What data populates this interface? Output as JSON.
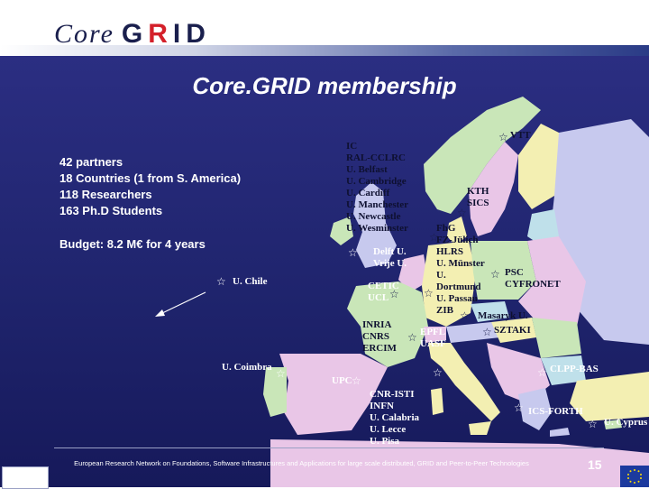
{
  "header": {
    "logo_core": "Core",
    "logo_grid_g": "G",
    "logo_grid_r": "R",
    "logo_grid_id": "ID"
  },
  "title": "Core.GRID membership",
  "stats": [
    "42 partners",
    "18 Countries (1 from S. America)",
    "118 Researchers",
    "163 Ph.D Students"
  ],
  "budget": "Budget: 8.2 M€ for 4 years",
  "labels": {
    "vtt": "VTT",
    "uk": "IC\nRAL-CCLRC\nU. Belfast\nU. Cambridge\nU. Cardiff\nU. Manchester\nU. Newcastle\nU. Wesminster",
    "kth": "KTH\nSICS",
    "fhg": "FhG\nFZ-Jülich\nHLRS\nU. Münster\nU.\nDortmund\nU. Passau\nZIB",
    "delft": "Delft U.\nVrije U.",
    "psc": "PSC\nCYFRONET",
    "chile": "U. Chile",
    "cetic": "CETIC\nUCL",
    "masaryk": "Masaryk U.",
    "sztaki": "SZTAKI",
    "inria": "INRIA\nCNRS\nERCIM",
    "epfl": "EPFL\nUASF",
    "coimbra": "U. Coimbra",
    "upc": "UPC",
    "clpp": "CLPP-BAS",
    "italy": "CNR-ISTI\nINFN\nU. Calabria\nU. Lecce\nU. Pisa",
    "icsforth": "ICS-FORTH",
    "cyprus": "U. Cyprus"
  },
  "footer": {
    "text": "European Research Network on Foundations, Software Infrastructures and Applications for large scale distributed, GRID and Peer-to-Peer Technologies",
    "page_number": "15"
  },
  "colors": {
    "background": "#2b2e82",
    "land": [
      "#c9e6b8",
      "#c7c9ee",
      "#e9c6e7",
      "#f3efb2",
      "#bfe0ea"
    ]
  },
  "icons": [
    "star-icon",
    "arrow-icon",
    "eu-flag-icon"
  ]
}
